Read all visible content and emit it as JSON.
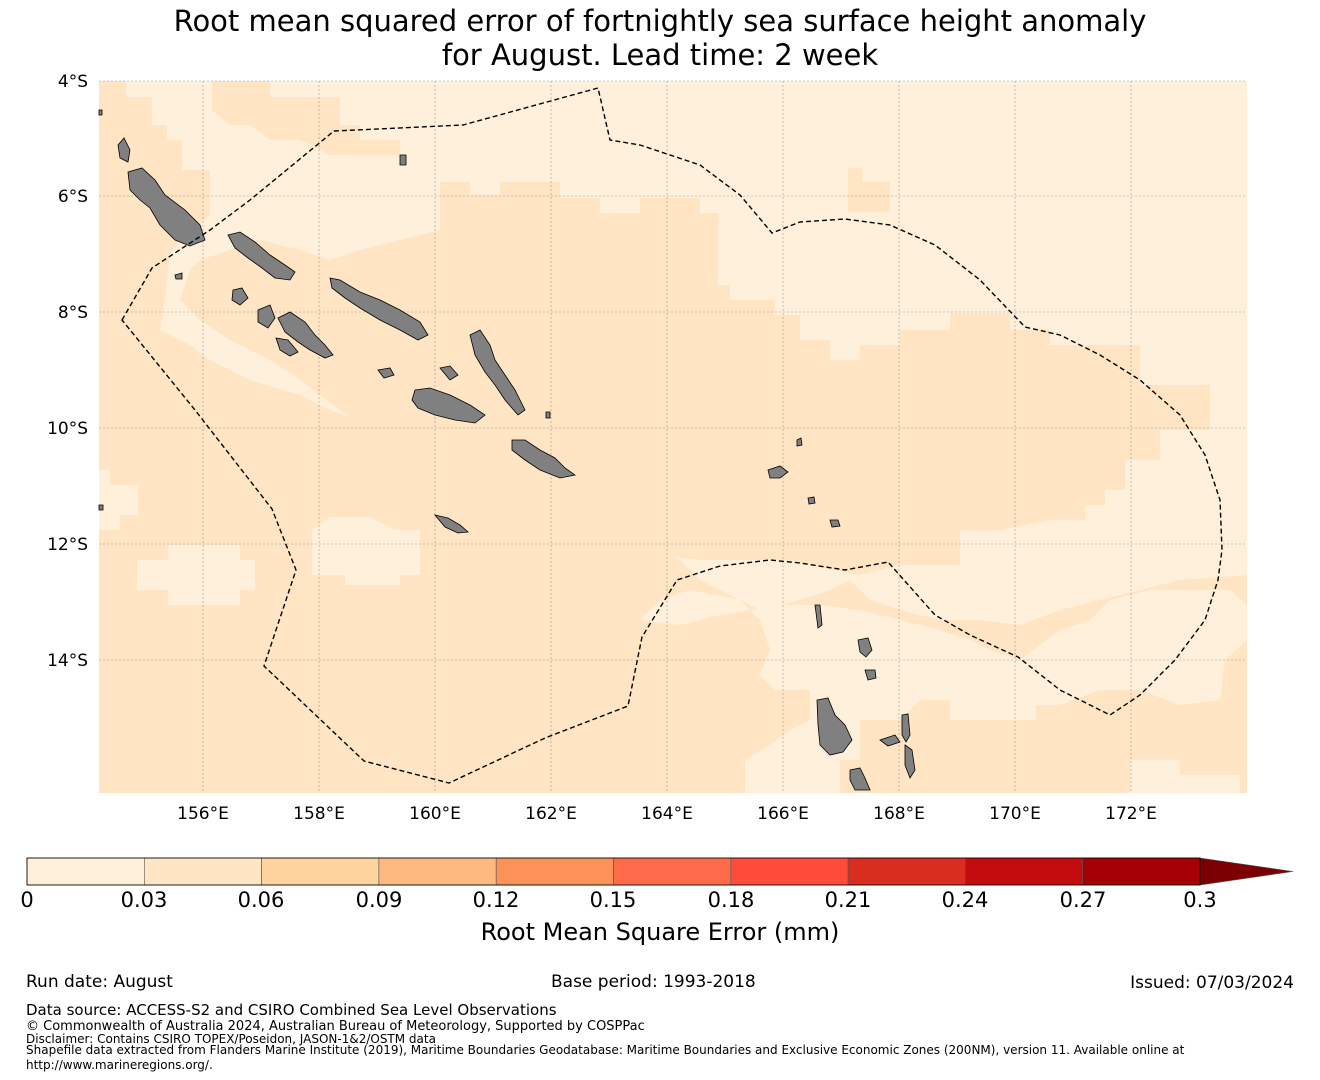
{
  "title": {
    "line1": "Root mean squared error of fortnightly sea surface height anomaly",
    "line2": "for August. Lead time: 2 week"
  },
  "map": {
    "lat_labels": [
      "4°S",
      "6°S",
      "8°S",
      "10°S",
      "12°S",
      "14°S"
    ],
    "lon_labels": [
      "156°E",
      "158°E",
      "160°E",
      "162°E",
      "164°E",
      "166°E",
      "168°E",
      "170°E",
      "172°E"
    ],
    "extent": {
      "lon": [
        154.2,
        174.0
      ],
      "lat": [
        -16.3,
        -4.0
      ]
    },
    "colors": {
      "land": "#808080",
      "grid": "#808080",
      "boundary": "#000000"
    }
  },
  "colorbar": {
    "title": "Root Mean Square Error (mm)",
    "tick_labels": [
      "0",
      "0.03",
      "0.06",
      "0.09",
      "0.12",
      "0.15",
      "0.18",
      "0.21",
      "0.24",
      "0.27",
      "0.3"
    ],
    "colors": [
      "#fff0dc",
      "#ffe5c4",
      "#fed39d",
      "#fdb97f",
      "#fc9259",
      "#fd6b4a",
      "#fe4b3a",
      "#d92d20",
      "#c40c0e",
      "#a50005",
      "#7a0003"
    ]
  },
  "footer": {
    "run_date": "Run date: August",
    "base_period": "Base period: 1993-2018",
    "issued": "Issued: 07/03/2024",
    "data_source": "Data source: ACCESS-S2 and CSIRO Combined Sea Level Observations",
    "copyright": "© Commonwealth of Australia 2024, Australian Bureau of Meteorology, Supported by COSPPac",
    "disclaimer": "Disclaimer: Contains CSIRO TOPEX/Poseidon, JASON-1&2/OSTM data",
    "shapefile": "Shapefile data extracted from Flanders Marine Institute (2019), Maritime Boundaries Geodatabase: Maritime Boundaries and Exclusive Economic Zones (200NM), version 11. Available online at",
    "url": "http://www.marineregions.org/."
  }
}
